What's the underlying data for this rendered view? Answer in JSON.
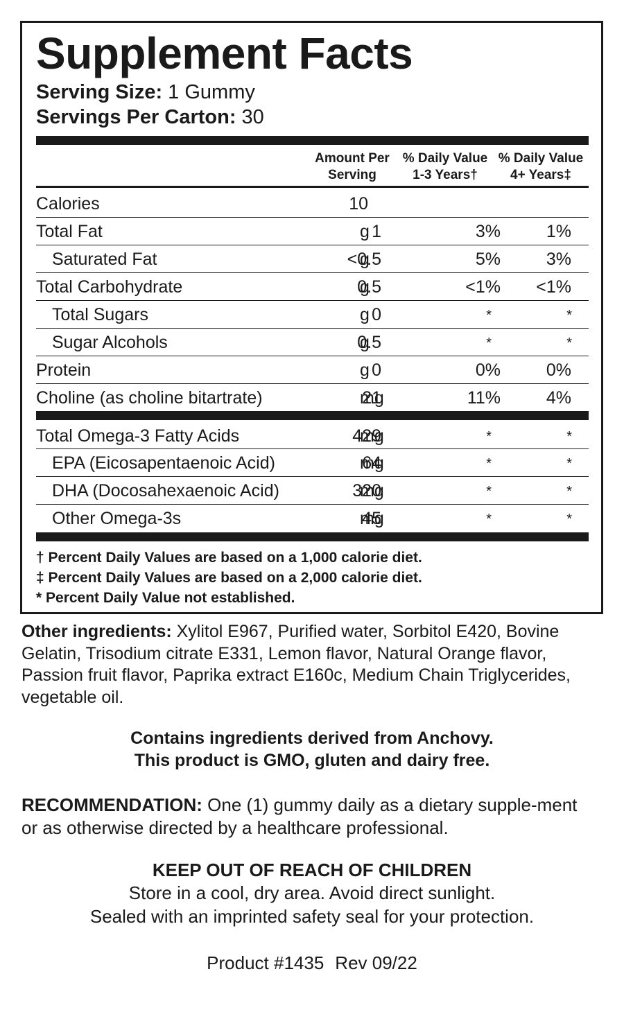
{
  "facts": {
    "title": "Supplement Facts",
    "serving_size_label": "Serving Size:",
    "serving_size_value": " 1 Gummy",
    "servings_label": "Servings Per Carton:",
    "servings_value": " 30",
    "columns": {
      "amount_line1": "Amount Per",
      "amount_line2": "Serving",
      "dv1_line1": "% Daily Value",
      "dv1_line2": "1-3 Years†",
      "dv2_line1": "% Daily Value",
      "dv2_line2": "4+ Years‡"
    },
    "rows": [
      {
        "label": "Calories",
        "amount": "10",
        "unit": "",
        "dv1": "",
        "dv2": ""
      },
      {
        "label": "Total Fat",
        "amount": "1",
        "unit": "g",
        "dv1": "3%",
        "dv2": "1%"
      },
      {
        "label": "Saturated Fat",
        "amount": "<0.5",
        "unit": "g",
        "dv1": "5%",
        "dv2": "3%"
      },
      {
        "label": "Total Carbohydrate",
        "amount": "0.5",
        "unit": "g",
        "dv1": "<1%",
        "dv2": "<1%"
      },
      {
        "label": "Total Sugars",
        "amount": "0",
        "unit": "g",
        "dv1": "*",
        "dv2": "*"
      },
      {
        "label": "Sugar Alcohols",
        "amount": "0.5",
        "unit": "g",
        "dv1": "*",
        "dv2": "*"
      },
      {
        "label": "Protein",
        "amount": "0",
        "unit": "g",
        "dv1": "0%",
        "dv2": "0%"
      },
      {
        "label": "Choline (as choline bitartrate)",
        "amount": "21",
        "unit": "mg",
        "dv1": "11%",
        "dv2": "4%"
      },
      {
        "label": "Total Omega-3 Fatty Acids",
        "amount": "429",
        "unit": "mg",
        "dv1": "*",
        "dv2": "*"
      },
      {
        "label": "EPA (Eicosapentaenoic Acid)",
        "amount": "64",
        "unit": "mg",
        "dv1": "*",
        "dv2": "*"
      },
      {
        "label": "DHA (Docosahexaenoic Acid)",
        "amount": "320",
        "unit": "mg",
        "dv1": "*",
        "dv2": "*"
      },
      {
        "label": "Other Omega-3s",
        "amount": "45",
        "unit": "mg",
        "dv1": "*",
        "dv2": "*"
      }
    ],
    "footnotes": [
      "† Percent Daily Values are based on a 1,000 calorie diet.",
      "‡ Percent Daily Values are based on a 2,000 calorie diet.",
      "* Percent Daily Value not established."
    ]
  },
  "ingredients": {
    "label": "Other ingredients:",
    "text": " Xylitol E967, Purified water, Sorbitol E420, Bovine Gelatin, Trisodium citrate E331, Lemon flavor, Natural Orange flavor, Passion fruit flavor, Paprika extract E160c, Medium Chain Triglycerides, vegetable oil."
  },
  "allergen": {
    "line1": "Contains ingredients derived from Anchovy.",
    "line2": "This product is GMO, gluten and dairy free."
  },
  "recommendation": {
    "label": "RECOMMENDATION:",
    "text": " One (1) gummy daily as a dietary supple-ment or as otherwise directed by a healthcare professional."
  },
  "warning": {
    "title": "KEEP OUT OF REACH OF CHILDREN",
    "line1": "Store in a cool, dry area. Avoid direct sunlight.",
    "line2": "Sealed with an imprinted safety seal for your protection."
  },
  "product": {
    "number": "Product #1435",
    "revision": "Rev 09/22"
  }
}
